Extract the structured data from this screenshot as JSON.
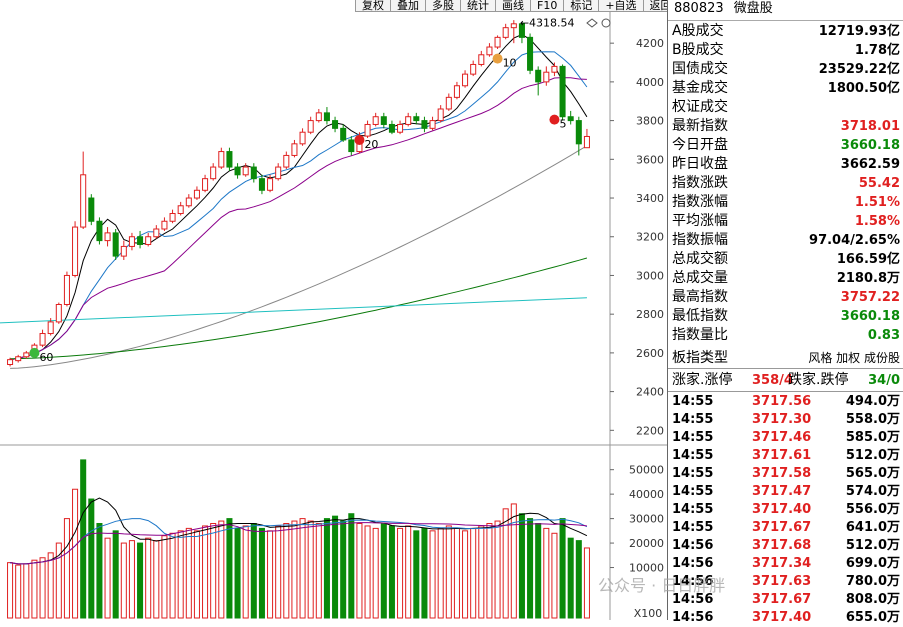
{
  "toolbar": [
    "复权",
    "叠加",
    "多股",
    "统计",
    "画线",
    "F10",
    "标记",
    "+自选",
    "返回"
  ],
  "panel": {
    "code": "880823",
    "name": "微盘股",
    "stats": [
      {
        "label": "A股成交",
        "value": "12719.93亿",
        "color": "black"
      },
      {
        "label": "B股成交",
        "value": "1.78亿",
        "color": "black"
      },
      {
        "label": "国债成交",
        "value": "23529.22亿",
        "color": "black"
      },
      {
        "label": "基金成交",
        "value": "1800.50亿",
        "color": "black"
      },
      {
        "label": "权证成交",
        "value": "",
        "color": "black"
      },
      {
        "label": "最新指数",
        "value": "3718.01",
        "color": "red"
      },
      {
        "label": "今日开盘",
        "value": "3660.18",
        "color": "green"
      },
      {
        "label": "昨日收盘",
        "value": "3662.59",
        "color": "black"
      },
      {
        "label": "指数涨跌",
        "value": "55.42",
        "color": "red"
      },
      {
        "label": "指数涨幅",
        "value": "1.51%",
        "color": "red"
      },
      {
        "label": "平均涨幅",
        "value": "1.58%",
        "color": "red"
      },
      {
        "label": "指数振幅",
        "value": "97.04/2.65%",
        "color": "black"
      },
      {
        "label": "总成交额",
        "value": "166.59亿",
        "color": "black"
      },
      {
        "label": "总成交量",
        "value": "2180.8万",
        "color": "black"
      },
      {
        "label": "最高指数",
        "value": "3757.22",
        "color": "red"
      },
      {
        "label": "最低指数",
        "value": "3660.18",
        "color": "green"
      },
      {
        "label": "指数量比",
        "value": "0.83",
        "color": "green"
      }
    ],
    "type_label": "板指类型",
    "type_value": "风格 加权 成份股",
    "breadth": {
      "up_label": "涨家.涨停",
      "up_value": "358/4",
      "down_label": "跌家.跌停",
      "down_value": "34/0"
    },
    "ticks": [
      {
        "time": "14:55",
        "price": "3717.56",
        "vol": "494.0万"
      },
      {
        "time": "14:55",
        "price": "3717.30",
        "vol": "558.0万"
      },
      {
        "time": "14:55",
        "price": "3717.46",
        "vol": "585.0万"
      },
      {
        "time": "14:55",
        "price": "3717.61",
        "vol": "512.0万"
      },
      {
        "time": "14:55",
        "price": "3717.58",
        "vol": "565.0万"
      },
      {
        "time": "14:55",
        "price": "3717.47",
        "vol": "574.0万"
      },
      {
        "time": "14:55",
        "price": "3717.40",
        "vol": "556.0万"
      },
      {
        "time": "14:55",
        "price": "3717.67",
        "vol": "641.0万"
      },
      {
        "time": "14:56",
        "price": "3717.68",
        "vol": "512.0万"
      },
      {
        "time": "14:56",
        "price": "3717.34",
        "vol": "699.0万"
      },
      {
        "time": "14:56",
        "price": "3717.63",
        "vol": "780.0万"
      },
      {
        "time": "14:56",
        "price": "3717.67",
        "vol": "808.0万"
      },
      {
        "time": "14:56",
        "price": "3717.40",
        "vol": "655.0万"
      }
    ]
  },
  "watermark": "公众号 · 日日胖胖",
  "chart_data": {
    "type": "candlestick",
    "price_axis": {
      "ticks": [
        2200,
        2400,
        2600,
        2800,
        3000,
        3200,
        3400,
        3600,
        3800,
        4000,
        4200
      ]
    },
    "volume_axis": {
      "ticks": [
        10000,
        20000,
        30000,
        40000,
        50000
      ],
      "unit": "X100"
    },
    "annotations": [
      {
        "text": "4318.54",
        "kind": "high"
      },
      {
        "text": "10",
        "kind": "marker"
      },
      {
        "text": "20",
        "kind": "marker"
      },
      {
        "text": "60",
        "kind": "marker"
      },
      {
        "text": "5",
        "kind": "marker"
      }
    ],
    "colors": {
      "up": "#e02020",
      "down": "#0a8a0a",
      "ma5": "#000000",
      "ma10": "#1e78c8",
      "ma20": "#8b008b",
      "ma60": "#888888",
      "ma120": "#0a7a0a",
      "ma250": "#20c0c0"
    },
    "candles": [
      [
        2540,
        2565,
        2530,
        2575
      ],
      [
        2560,
        2580,
        2550,
        2590
      ],
      [
        2580,
        2600,
        2570,
        2610
      ],
      [
        2600,
        2640,
        2590,
        2650
      ],
      [
        2640,
        2700,
        2630,
        2720
      ],
      [
        2700,
        2760,
        2690,
        2780
      ],
      [
        2760,
        2850,
        2750,
        2860
      ],
      [
        2850,
        3000,
        2840,
        3020
      ],
      [
        3000,
        3250,
        2990,
        3280
      ],
      [
        3250,
        3520,
        3240,
        3640
      ],
      [
        3400,
        3280,
        3260,
        3420
      ],
      [
        3280,
        3180,
        3160,
        3300
      ],
      [
        3180,
        3220,
        3150,
        3250
      ],
      [
        3220,
        3100,
        3080,
        3240
      ],
      [
        3100,
        3150,
        3080,
        3180
      ],
      [
        3150,
        3200,
        3130,
        3220
      ],
      [
        3200,
        3160,
        3140,
        3230
      ],
      [
        3160,
        3200,
        3150,
        3220
      ],
      [
        3200,
        3240,
        3190,
        3260
      ],
      [
        3240,
        3280,
        3230,
        3300
      ],
      [
        3280,
        3320,
        3270,
        3340
      ],
      [
        3320,
        3360,
        3310,
        3380
      ],
      [
        3360,
        3400,
        3350,
        3420
      ],
      [
        3400,
        3440,
        3390,
        3460
      ],
      [
        3440,
        3500,
        3430,
        3520
      ],
      [
        3500,
        3560,
        3490,
        3580
      ],
      [
        3560,
        3640,
        3550,
        3660
      ],
      [
        3640,
        3560,
        3540,
        3660
      ],
      [
        3560,
        3520,
        3500,
        3580
      ],
      [
        3520,
        3560,
        3510,
        3580
      ],
      [
        3560,
        3500,
        3480,
        3580
      ],
      [
        3500,
        3440,
        3420,
        3520
      ],
      [
        3440,
        3500,
        3430,
        3520
      ],
      [
        3500,
        3560,
        3490,
        3580
      ],
      [
        3560,
        3620,
        3550,
        3640
      ],
      [
        3620,
        3680,
        3610,
        3700
      ],
      [
        3680,
        3740,
        3670,
        3760
      ],
      [
        3740,
        3800,
        3730,
        3820
      ],
      [
        3800,
        3840,
        3790,
        3860
      ],
      [
        3840,
        3800,
        3780,
        3870
      ],
      [
        3800,
        3760,
        3740,
        3820
      ],
      [
        3760,
        3700,
        3690,
        3780
      ],
      [
        3700,
        3640,
        3620,
        3720
      ],
      [
        3640,
        3720,
        3630,
        3740
      ],
      [
        3720,
        3780,
        3710,
        3800
      ],
      [
        3780,
        3820,
        3770,
        3840
      ],
      [
        3820,
        3780,
        3760,
        3840
      ],
      [
        3780,
        3740,
        3730,
        3800
      ],
      [
        3740,
        3780,
        3730,
        3800
      ],
      [
        3780,
        3820,
        3770,
        3840
      ],
      [
        3820,
        3800,
        3780,
        3840
      ],
      [
        3800,
        3760,
        3740,
        3820
      ],
      [
        3760,
        3800,
        3750,
        3820
      ],
      [
        3800,
        3860,
        3790,
        3880
      ],
      [
        3860,
        3920,
        3850,
        3940
      ],
      [
        3920,
        3980,
        3910,
        4000
      ],
      [
        3980,
        4040,
        3970,
        4060
      ],
      [
        4040,
        4090,
        4030,
        4110
      ],
      [
        4090,
        4140,
        4080,
        4160
      ],
      [
        4140,
        4180,
        4130,
        4200
      ],
      [
        4180,
        4230,
        4170,
        4240
      ],
      [
        4230,
        4280,
        4220,
        4300
      ],
      [
        4280,
        4300,
        4200,
        4319
      ],
      [
        4300,
        4230,
        4200,
        4310
      ],
      [
        4230,
        4060,
        4040,
        4250
      ],
      [
        4060,
        4000,
        3930,
        4080
      ],
      [
        4000,
        4050,
        3980,
        4080
      ],
      [
        4050,
        4080,
        4030,
        4100
      ],
      [
        4080,
        3820,
        3800,
        4090
      ],
      [
        3820,
        3800,
        3780,
        3850
      ],
      [
        3800,
        3680,
        3620,
        3820
      ],
      [
        3660,
        3718,
        3660,
        3757
      ]
    ],
    "volumes": [
      [
        12000,
        1
      ],
      [
        11000,
        1
      ],
      [
        11500,
        1
      ],
      [
        13000,
        1
      ],
      [
        14000,
        1
      ],
      [
        16000,
        1
      ],
      [
        20000,
        1
      ],
      [
        30000,
        1
      ],
      [
        42000,
        1
      ],
      [
        54000,
        0
      ],
      [
        38000,
        0
      ],
      [
        28000,
        0
      ],
      [
        22000,
        1
      ],
      [
        25000,
        0
      ],
      [
        20000,
        1
      ],
      [
        21000,
        1
      ],
      [
        20000,
        0
      ],
      [
        22000,
        1
      ],
      [
        21000,
        1
      ],
      [
        23000,
        1
      ],
      [
        24000,
        1
      ],
      [
        25000,
        1
      ],
      [
        26000,
        1
      ],
      [
        25000,
        1
      ],
      [
        27000,
        1
      ],
      [
        28000,
        1
      ],
      [
        29000,
        1
      ],
      [
        30000,
        0
      ],
      [
        26000,
        0
      ],
      [
        27000,
        1
      ],
      [
        28000,
        0
      ],
      [
        26000,
        0
      ],
      [
        25000,
        1
      ],
      [
        27000,
        1
      ],
      [
        28000,
        1
      ],
      [
        29000,
        1
      ],
      [
        30000,
        1
      ],
      [
        29000,
        1
      ],
      [
        28000,
        1
      ],
      [
        30000,
        0
      ],
      [
        31000,
        0
      ],
      [
        29000,
        0
      ],
      [
        32000,
        0
      ],
      [
        28000,
        1
      ],
      [
        27000,
        1
      ],
      [
        26000,
        1
      ],
      [
        28000,
        0
      ],
      [
        27000,
        0
      ],
      [
        26000,
        1
      ],
      [
        27000,
        1
      ],
      [
        25000,
        0
      ],
      [
        26000,
        0
      ],
      [
        25000,
        1
      ],
      [
        26000,
        1
      ],
      [
        27000,
        1
      ],
      [
        26000,
        1
      ],
      [
        25000,
        1
      ],
      [
        26000,
        1
      ],
      [
        27000,
        1
      ],
      [
        28000,
        1
      ],
      [
        29000,
        1
      ],
      [
        34000,
        1
      ],
      [
        36000,
        1
      ],
      [
        32000,
        0
      ],
      [
        30000,
        0
      ],
      [
        28000,
        0
      ],
      [
        26000,
        1
      ],
      [
        24000,
        1
      ],
      [
        30000,
        0
      ],
      [
        22000,
        0
      ],
      [
        21000,
        0
      ],
      [
        18000,
        1
      ]
    ]
  }
}
